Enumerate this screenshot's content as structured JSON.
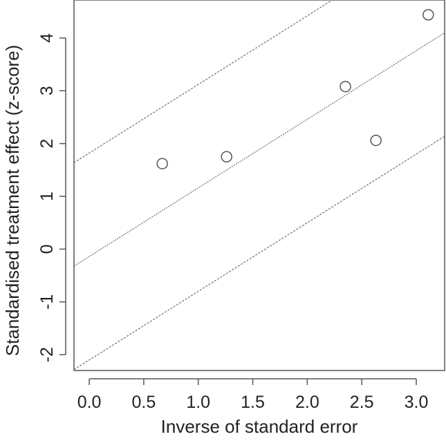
{
  "chart_data": {
    "type": "scatter",
    "title": "",
    "xlabel": "Inverse of standard error",
    "ylabel": "Standardised treatment effect (z-score)",
    "xlim": [
      -0.14,
      3.26
    ],
    "ylim": [
      -2.3,
      4.72
    ],
    "x_ticks": [
      0.0,
      0.5,
      1.0,
      1.5,
      2.0,
      2.5,
      3.0
    ],
    "x_tick_labels": [
      "0.0",
      "0.5",
      "1.0",
      "1.5",
      "2.0",
      "2.5",
      "3.0"
    ],
    "y_ticks": [
      -2,
      -1,
      0,
      1,
      2,
      3,
      4
    ],
    "y_tick_labels": [
      "-2",
      "-1",
      "0",
      "1",
      "2",
      "3",
      "4"
    ],
    "grid": false,
    "legend": "none",
    "series": [
      {
        "points": [
          {
            "x": 0.67,
            "y": 1.62
          },
          {
            "x": 1.26,
            "y": 1.75
          },
          {
            "x": 2.35,
            "y": 3.08
          },
          {
            "x": 2.63,
            "y": 2.06
          },
          {
            "x": 3.11,
            "y": 4.44
          }
        ]
      }
    ],
    "reference_lines": [
      {
        "intercept": 1.82,
        "slope": 1.3
      },
      {
        "intercept": -0.14,
        "slope": 1.3
      },
      {
        "intercept": -2.1,
        "slope": 1.3
      }
    ],
    "colors": {
      "axis": "#555555",
      "points": "#555555",
      "lines": "#6e6e6e",
      "text": "#222222"
    }
  }
}
